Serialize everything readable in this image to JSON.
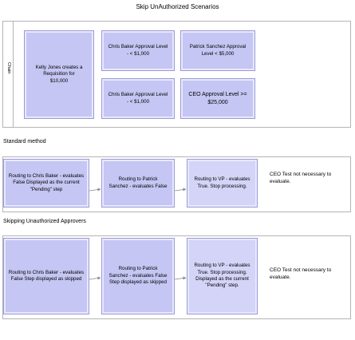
{
  "diagram_title": "Skip UnAuthorized Scenarios",
  "chain_label": "Chain",
  "chain_boxes": {
    "requester": "Kelly Jones creates a Requisition for $10,000",
    "approver_top_left": "Chris Baker Approval Level - < $1,000",
    "approver_top_right": "Patrick Sanchez Approval Level < $5,000",
    "approver_bottom_left": "Chris Baker Approval Level - < $1,000",
    "approver_bottom_right": "CEO Approval Level >= $25,000"
  },
  "standard_method": {
    "heading": "Standard method",
    "steps": [
      "Routing to Chris Baker - evaluates False Displayed as the current \"Pending\" step",
      "Routing to Patrick Sanchez - evaluates False",
      "Routing to VP - evaluates True. Stop processing."
    ],
    "note": "CEO Test not necessary to evaluate."
  },
  "skipping_method": {
    "heading": "Skipping Unauthorized Approvers",
    "steps": [
      "Routing to Chris Baker - evaluates False Step displayed as skipped",
      "Routing to Patrick Sanchez - evaluates False Step displayed as skipped",
      "Routing to VP - evaluates True. Stop processing. Displayed as the current \"Pending\" step."
    ],
    "note": "CEO Test not necessary to evaluate."
  }
}
